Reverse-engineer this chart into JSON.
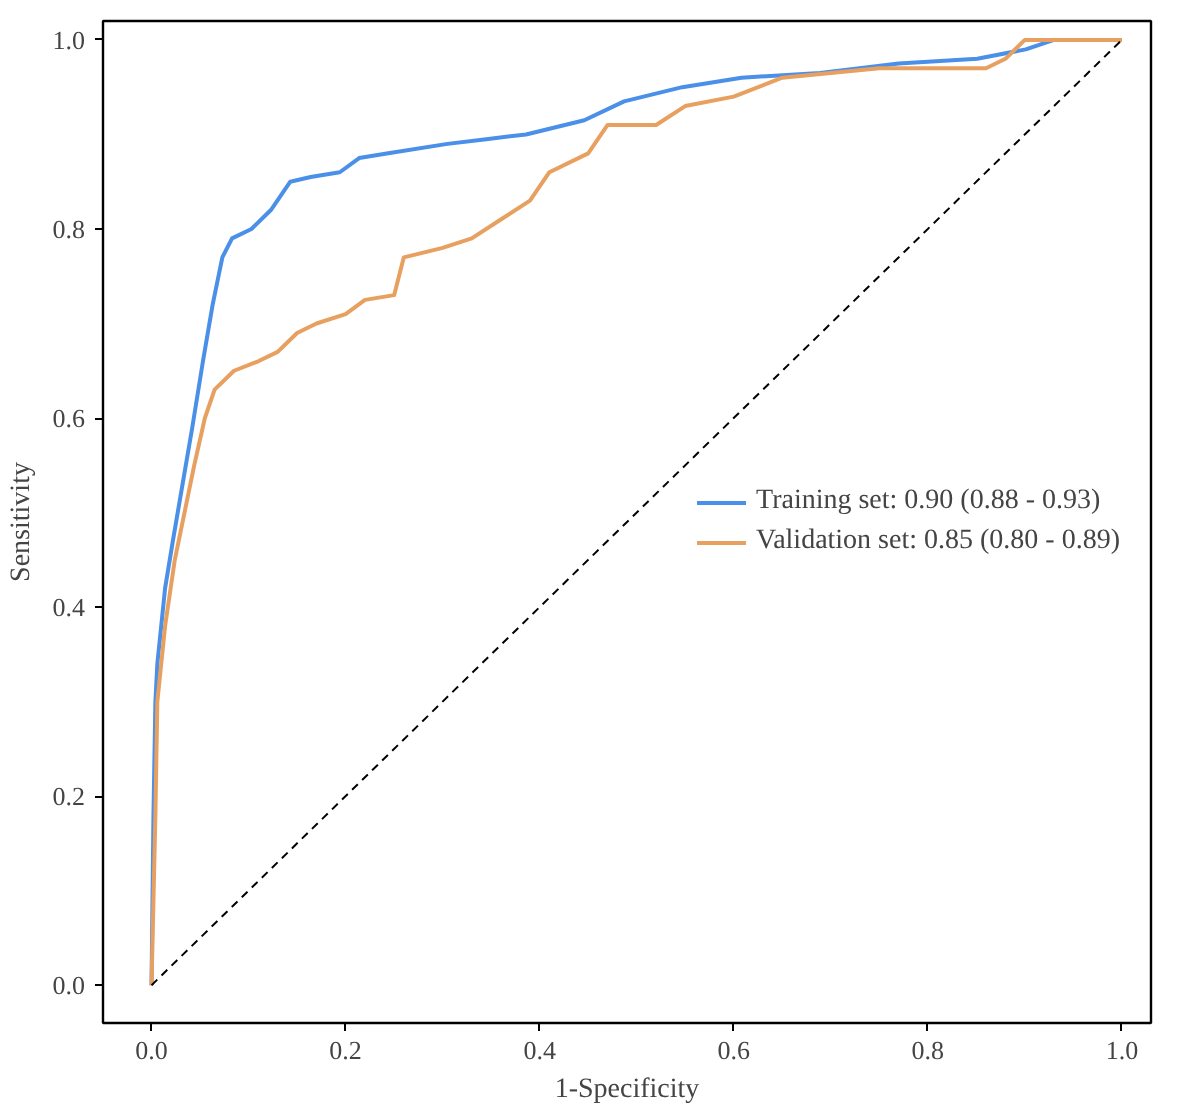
{
  "chart_data": {
    "type": "line",
    "xlabel": "1-Specificity",
    "ylabel": "Sensitivity",
    "xlim": [
      -0.05,
      1.03
    ],
    "ylim": [
      -0.04,
      1.02
    ],
    "xticks": [
      {
        "value": 0,
        "label": "0.0"
      },
      {
        "value": 0.2,
        "label": "0.2"
      },
      {
        "value": 0.4,
        "label": "0.4"
      },
      {
        "value": 0.6,
        "label": "0.6"
      },
      {
        "value": 0.8,
        "label": "0.8"
      },
      {
        "value": 1,
        "label": "1.0"
      }
    ],
    "yticks": [
      {
        "value": 0,
        "label": "0.0"
      },
      {
        "value": 0.2,
        "label": "0.2"
      },
      {
        "value": 0.4,
        "label": "0.4"
      },
      {
        "value": 0.6,
        "label": "0.6"
      },
      {
        "value": 0.8,
        "label": "0.8"
      },
      {
        "value": 1,
        "label": "1.0"
      }
    ],
    "grid": false,
    "legend": "right",
    "series": [
      {
        "name": "Training set: 0.90 (0.88 - 0.93)",
        "color": "#4a8fe8",
        "x": [
          0,
          0.002,
          0.004,
          0.006,
          0.014,
          0.022,
          0.032,
          0.042,
          0.053,
          0.063,
          0.073,
          0.083,
          0.103,
          0.123,
          0.143,
          0.164,
          0.194,
          0.214,
          0.244,
          0.305,
          0.345,
          0.386,
          0.446,
          0.487,
          0.547,
          0.608,
          0.689,
          0.77,
          0.851,
          0.901,
          0.93,
          1.0
        ],
        "values": [
          0,
          0.18,
          0.3,
          0.34,
          0.42,
          0.47,
          0.53,
          0.59,
          0.66,
          0.72,
          0.77,
          0.79,
          0.8,
          0.82,
          0.85,
          0.855,
          0.86,
          0.875,
          0.88,
          0.89,
          0.895,
          0.9,
          0.915,
          0.935,
          0.95,
          0.96,
          0.965,
          0.975,
          0.98,
          0.99,
          1.0,
          1.0
        ]
      },
      {
        "name": "Validation set: 0.85 (0.80 - 0.89)",
        "color": "#e8a060",
        "x": [
          0,
          0.004,
          0.006,
          0.014,
          0.024,
          0.034,
          0.044,
          0.055,
          0.065,
          0.085,
          0.11,
          0.13,
          0.15,
          0.17,
          0.2,
          0.22,
          0.25,
          0.26,
          0.3,
          0.33,
          0.36,
          0.39,
          0.41,
          0.45,
          0.47,
          0.52,
          0.55,
          0.6,
          0.65,
          0.75,
          0.86,
          0.88,
          0.9,
          1.0
        ],
        "values": [
          0,
          0.18,
          0.3,
          0.38,
          0.45,
          0.5,
          0.55,
          0.6,
          0.63,
          0.65,
          0.66,
          0.67,
          0.69,
          0.7,
          0.71,
          0.725,
          0.73,
          0.77,
          0.78,
          0.79,
          0.81,
          0.83,
          0.86,
          0.88,
          0.91,
          0.91,
          0.93,
          0.94,
          0.96,
          0.97,
          0.97,
          0.98,
          1.0,
          1.0
        ]
      },
      {
        "color": "#000000",
        "line_style": "dashed",
        "x": [
          0,
          1
        ],
        "values": [
          0,
          1
        ]
      }
    ]
  }
}
